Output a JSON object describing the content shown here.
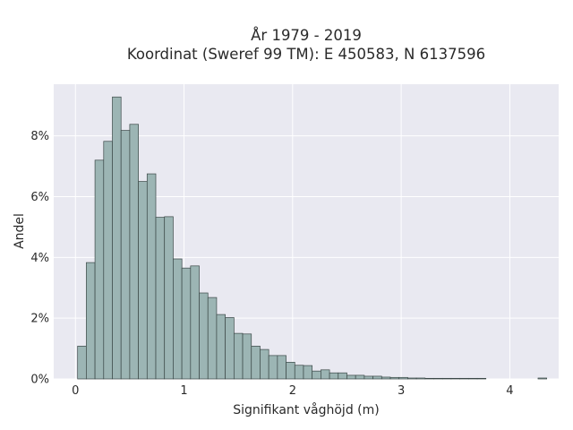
{
  "chart_data": {
    "type": "bar",
    "title_line1": "År 1979 - 2019",
    "title_line2": "Koordinat (Sweref 99 TM): E 450583, N 6137596",
    "xlabel": "Signifikant våghöjd (m)",
    "ylabel": "Andel",
    "xlim": [
      -0.2,
      4.45
    ],
    "ylim": [
      0,
      9.7
    ],
    "grid": true,
    "x_ticks": [
      0,
      1,
      2,
      3,
      4
    ],
    "x_tick_labels": [
      "0",
      "1",
      "2",
      "3",
      "4"
    ],
    "y_ticks": [
      0,
      2,
      4,
      6,
      8
    ],
    "y_tick_labels": [
      "0%",
      "2%",
      "4%",
      "6%",
      "8%"
    ],
    "bin_start": 0.02,
    "bin_width": 0.08,
    "values": [
      1.08,
      3.83,
      7.2,
      7.82,
      9.28,
      8.18,
      8.38,
      6.5,
      6.75,
      5.32,
      5.34,
      3.95,
      3.65,
      3.72,
      2.83,
      2.68,
      2.12,
      2.02,
      1.5,
      1.48,
      1.08,
      0.97,
      0.77,
      0.77,
      0.55,
      0.45,
      0.44,
      0.26,
      0.3,
      0.2,
      0.2,
      0.12,
      0.12,
      0.09,
      0.09,
      0.06,
      0.05,
      0.05,
      0.03,
      0.03,
      0.02,
      0.02,
      0.02,
      0.02,
      0.02,
      0.02,
      0.02,
      0.0,
      0.0,
      0.0,
      0.0,
      0.0,
      0.0,
      0.03
    ],
    "colors": {
      "plot_bg": "#e9e9f1",
      "bar_fill": "#9cb5b4",
      "bar_edge": "#3b4847",
      "grid": "#ffffff"
    }
  }
}
